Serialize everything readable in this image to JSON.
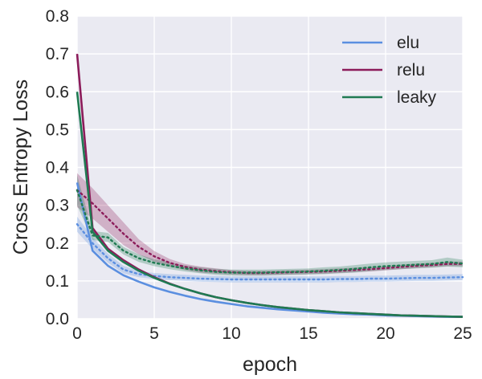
{
  "chart_data": {
    "type": "line",
    "xlabel": "epoch",
    "ylabel": "Cross Entropy Loss",
    "xlim": [
      0,
      25
    ],
    "ylim": [
      0,
      0.8
    ],
    "xticks": [
      "0",
      "5",
      "10",
      "15",
      "20",
      "25"
    ],
    "yticks": [
      "0.0",
      "0.1",
      "0.2",
      "0.3",
      "0.4",
      "0.5",
      "0.6",
      "0.7",
      "0.8"
    ],
    "grid": true,
    "legend_position": "top-right",
    "x": [
      0,
      1,
      2,
      3,
      4,
      5,
      6,
      7,
      8,
      9,
      10,
      11,
      12,
      13,
      14,
      15,
      16,
      17,
      18,
      19,
      20,
      21,
      22,
      23,
      24,
      25
    ],
    "series": [
      {
        "name": "elu",
        "color": "#5b8fe0",
        "train": [
          0.36,
          0.18,
          0.14,
          0.115,
          0.098,
          0.083,
          0.071,
          0.061,
          0.052,
          0.045,
          0.039,
          0.033,
          0.029,
          0.025,
          0.022,
          0.019,
          0.016,
          0.014,
          0.012,
          0.011,
          0.009,
          0.008,
          0.007,
          0.006,
          0.005,
          0.005
        ],
        "val": [
          0.25,
          0.2,
          0.16,
          0.13,
          0.118,
          0.113,
          0.11,
          0.108,
          0.106,
          0.105,
          0.104,
          0.104,
          0.104,
          0.104,
          0.104,
          0.104,
          0.104,
          0.105,
          0.105,
          0.106,
          0.106,
          0.107,
          0.108,
          0.108,
          0.109,
          0.11
        ],
        "val_band": [
          0.02,
          0.015,
          0.012,
          0.01,
          0.008,
          0.008,
          0.008,
          0.008,
          0.008,
          0.008,
          0.008,
          0.008,
          0.008,
          0.008,
          0.008,
          0.008,
          0.008,
          0.008,
          0.008,
          0.008,
          0.008,
          0.008,
          0.008,
          0.008,
          0.008,
          0.008
        ]
      },
      {
        "name": "relu",
        "color": "#8c1c5a",
        "train": [
          0.7,
          0.24,
          0.185,
          0.155,
          0.13,
          0.11,
          0.093,
          0.079,
          0.067,
          0.057,
          0.049,
          0.042,
          0.036,
          0.031,
          0.027,
          0.023,
          0.02,
          0.017,
          0.015,
          0.013,
          0.011,
          0.009,
          0.008,
          0.007,
          0.006,
          0.005
        ],
        "val": [
          0.34,
          0.305,
          0.265,
          0.225,
          0.19,
          0.165,
          0.148,
          0.137,
          0.13,
          0.126,
          0.123,
          0.121,
          0.121,
          0.122,
          0.123,
          0.124,
          0.125,
          0.127,
          0.129,
          0.131,
          0.134,
          0.137,
          0.14,
          0.142,
          0.145,
          0.145
        ],
        "val_band": [
          0.045,
          0.04,
          0.035,
          0.03,
          0.02,
          0.014,
          0.01,
          0.008,
          0.008,
          0.007,
          0.006,
          0.006,
          0.006,
          0.006,
          0.006,
          0.006,
          0.006,
          0.006,
          0.006,
          0.006,
          0.006,
          0.006,
          0.006,
          0.006,
          0.006,
          0.006
        ]
      },
      {
        "name": "leaky",
        "color": "#1f7a52",
        "train": [
          0.6,
          0.23,
          0.18,
          0.15,
          0.127,
          0.108,
          0.092,
          0.079,
          0.067,
          0.057,
          0.049,
          0.042,
          0.036,
          0.031,
          0.027,
          0.023,
          0.02,
          0.017,
          0.015,
          0.013,
          0.011,
          0.009,
          0.008,
          0.007,
          0.006,
          0.005
        ],
        "val": [
          0.34,
          0.22,
          0.215,
          0.18,
          0.16,
          0.148,
          0.14,
          0.133,
          0.128,
          0.124,
          0.122,
          0.122,
          0.122,
          0.123,
          0.124,
          0.125,
          0.127,
          0.129,
          0.132,
          0.136,
          0.139,
          0.141,
          0.143,
          0.145,
          0.15,
          0.146
        ],
        "val_band": [
          0.04,
          0.012,
          0.012,
          0.01,
          0.01,
          0.009,
          0.009,
          0.008,
          0.008,
          0.008,
          0.008,
          0.008,
          0.008,
          0.008,
          0.008,
          0.008,
          0.009,
          0.009,
          0.01,
          0.01,
          0.01,
          0.01,
          0.01,
          0.01,
          0.012,
          0.01
        ]
      }
    ]
  }
}
